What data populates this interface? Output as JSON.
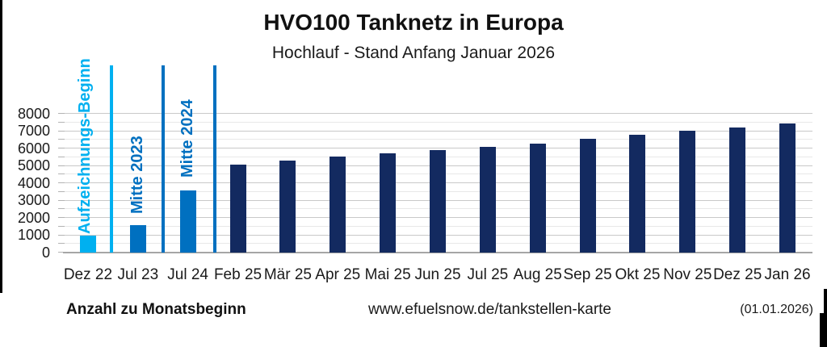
{
  "chart_data": {
    "type": "bar",
    "title": "HVO100 Tanknetz in Europa",
    "subtitle": "Hochlauf - Stand Anfang Januar 2026",
    "categories": [
      "Dez 22",
      "Jul 23",
      "Jul 24",
      "Feb 25",
      "Mär 25",
      "Apr 25",
      "Mai 25",
      "Jun 25",
      "Jul 25",
      "Aug 25",
      "Sep 25",
      "Okt 25",
      "Nov 25",
      "Dez 25",
      "Jan 26"
    ],
    "values": [
      1000,
      1560,
      3580,
      5070,
      5290,
      5550,
      5720,
      5890,
      6090,
      6280,
      6570,
      6780,
      7020,
      7210,
      7430
    ],
    "ylim": [
      0,
      8000
    ],
    "ytick_step": 1000,
    "yminor_step": 500,
    "grid": "on",
    "legend": "none",
    "series_colors": {
      "default": "#132a60",
      "overrides": {
        "0": "#00b0f0",
        "1": "#0070c0",
        "2": "#0070c0"
      }
    },
    "annotations": [
      {
        "label": "Aufzeichnungs-Beginn",
        "color": "#00b0f0"
      },
      {
        "label": "Mitte 2023",
        "color": "#0070c0"
      },
      {
        "label": "Mitte 2024",
        "color": "#0070c0"
      }
    ]
  },
  "footer": {
    "left": "Anzahl zu Monatsbeginn",
    "center": "www.efuelsnow.de/tankstellen-karte",
    "right": "(01.01.2026)"
  },
  "colors": {
    "light_blue": "#00b0f0",
    "medium_blue": "#0070c0",
    "navy": "#132a60"
  }
}
